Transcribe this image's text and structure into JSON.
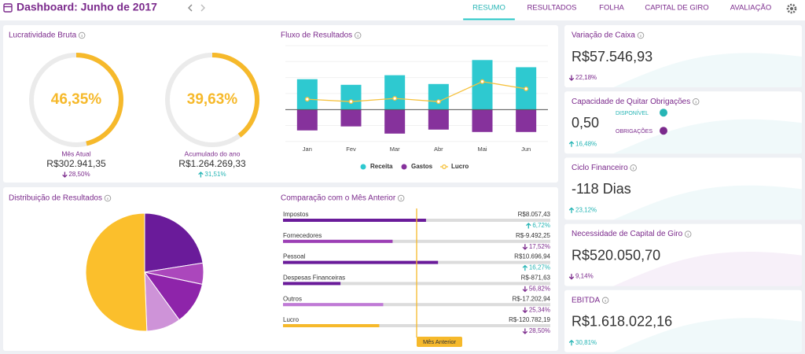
{
  "header": {
    "title": "Dashboard: Junho de 2017",
    "nav": [
      "RESUMO",
      "RESULTADOS",
      "FOLHA",
      "CAPITAL DE GIRO",
      "AVALIAÇÃO"
    ],
    "active": 0
  },
  "lucratividade": {
    "title": "Lucratividade Bruta",
    "range": [
      0,
      100
    ],
    "color": "#f6b92b",
    "track_color": "#ebebeb",
    "gauges": [
      {
        "value": 46.35,
        "value_label": "46,35%",
        "label": "Mês Atual",
        "amount": "R$302.941,35",
        "change": "28,50%",
        "direction": "down"
      },
      {
        "value": 39.63,
        "value_label": "39,63%",
        "label": "Acumulado do ano",
        "amount": "R$1.264.269,33",
        "change": "31,51%",
        "direction": "up"
      }
    ]
  },
  "fluxo": {
    "type": "bar",
    "title": "Fluxo de Resultados",
    "categories": [
      "Jan",
      "Fev",
      "Mar",
      "Abr",
      "Mai",
      "Jun"
    ],
    "ylim": [
      -40,
      80
    ],
    "series": [
      {
        "name": "Receita",
        "color": "#2ec9d0",
        "values": [
          38,
          31,
          43,
          32,
          62,
          53
        ]
      },
      {
        "name": "Gastos",
        "color": "#86329c",
        "values": [
          -26,
          -21,
          -30,
          -25,
          -28,
          -28
        ]
      },
      {
        "name": "Lucro",
        "color": "#f6c23e",
        "type": "line",
        "values": [
          13,
          10,
          14,
          10,
          35,
          26
        ]
      }
    ]
  },
  "distribuicao": {
    "type": "pie",
    "title": "Distribuição de Resultados",
    "values": [
      22.5,
      5.8,
      11.7,
      9.4,
      50.6
    ],
    "colors": [
      "#6a1b9a",
      "#ab47bc",
      "#8e24aa",
      "#ce93d8",
      "#fbbf2c"
    ]
  },
  "comparacao": {
    "title": "Comparação com o Mês Anterior",
    "xlim": [
      0,
      100
    ],
    "marker": {
      "label": "Mês Anterior",
      "value": 50,
      "color": "#f6b92b"
    },
    "rows": [
      {
        "name": "Impostos",
        "amount": "R$8.057,43",
        "change": "6,72%",
        "direction": "up",
        "bar": 53.5,
        "color": "#6a1b9a"
      },
      {
        "name": "Fornecedores",
        "amount": "R$-9.492,25",
        "change": "17,52%",
        "direction": "down",
        "bar": 41,
        "color": "#9c3fb5"
      },
      {
        "name": "Pessoal",
        "amount": "R$10.696,94",
        "change": "16,27%",
        "direction": "up",
        "bar": 58,
        "color": "#6a1b9a"
      },
      {
        "name": "Despesas Financeiras",
        "amount": "R$-871,63",
        "change": "56,82%",
        "direction": "down",
        "bar": 21.5,
        "color": "#6a1b9a"
      },
      {
        "name": "Outros",
        "amount": "R$-17.202,94",
        "change": "25,34%",
        "direction": "down",
        "bar": 37.5,
        "color": "#c07ad6"
      },
      {
        "name": "Lucro",
        "amount": "R$-120.782,19",
        "change": "28,50%",
        "direction": "down",
        "bar": 36,
        "color": "#f6b92b"
      }
    ]
  },
  "cards": [
    {
      "title": "Variação de Caixa",
      "value": "R$57.546,93",
      "change": "22,18%",
      "direction": "down"
    },
    {
      "title": "Capacidade de Quitar Obrigações",
      "value": "0,50",
      "change": "16,48%",
      "direction": "up",
      "legend": [
        "DISPONÍVEL",
        "OBRIGAÇÕES"
      ]
    },
    {
      "title": "Ciclo Financeiro",
      "value": "-118 Dias",
      "change": "23,12%",
      "direction": "up"
    },
    {
      "title": "Necessidade de Capital de Giro",
      "value": "R$520.050,70",
      "change": "9,14%",
      "direction": "down"
    },
    {
      "title": "EBITDA",
      "value": "R$1.618.022,16",
      "change": "30,81%",
      "direction": "up"
    }
  ]
}
